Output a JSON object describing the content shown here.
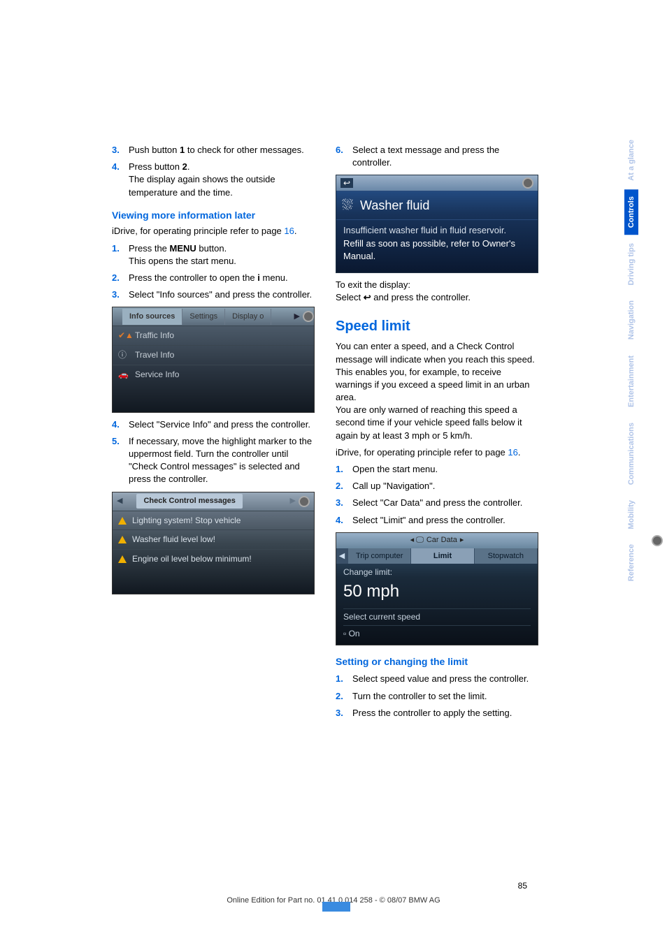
{
  "left": {
    "step3": "Push button ",
    "step3_bold": "1",
    "step3_tail": " to check for other messages.",
    "step4a": "Press button ",
    "step4_bold": "2",
    "step4_tail": ".",
    "step4b": "The display again shows the outside temperature and the time.",
    "sub1": "Viewing more information later",
    "idrive": "iDrive, for operating principle refer to page ",
    "idrive_pg": "16",
    "l1a": "Press the ",
    "l1b": "MENU",
    "l1c": " button.",
    "l1d": "This opens the start menu.",
    "l2a": "Press the controller to open the ",
    "l2b": " menu.",
    "l3": "Select \"Info sources\" and press the controller.",
    "ss1_tabs": [
      "Info sources",
      "Settings",
      "Display o"
    ],
    "ss1_rows": [
      "Traffic Info",
      "Travel Info",
      "Service Info"
    ],
    "l4": "Select \"Service Info\" and press the controller.",
    "l5": "If necessary, move the highlight marker to the uppermost field. Turn the controller until \"Check Control messages\" is selected and press the controller.",
    "ss2_title": "Check Control messages",
    "ss2_rows": [
      "Lighting system! Stop vehicle",
      "Washer fluid level low!",
      "Engine oil level below minimum!"
    ]
  },
  "right": {
    "r6": "Select a text message and press the controller.",
    "ss3_title": "Washer fluid",
    "ss3_b1": "Insufficient washer fluid in fluid reservoir.",
    "ss3_b2": "Refill as soon as possible, refer to Owner's Manual.",
    "exit1": "To exit the display:",
    "exit2a": "Select ",
    "exit2b": " and press the controller.",
    "section": "Speed limit",
    "p1": "You can enter a speed, and a Check Control message will indicate when you reach this speed. This enables you, for example, to receive warnings if you exceed a speed limit in an urban area.",
    "p2": "You are only warned of reaching this speed a second time if your vehicle speed falls below it again by at least 3 mph or 5 km/h.",
    "idrive": "iDrive, for operating principle refer to page ",
    "idrive_pg": "16",
    "s1": "Open the start menu.",
    "s2": "Call up \"Navigation\".",
    "s3": "Select \"Car Data\" and press the controller.",
    "s4": "Select \"Limit\" and press the controller.",
    "ss4_top": "Car Data",
    "ss4_tabs": [
      "Trip computer",
      "Limit",
      "Stopwatch"
    ],
    "ss4_lbl": "Change limit:",
    "ss4_mph": "50 mph",
    "ss4_sel": "Select current speed",
    "ss4_on": "On",
    "sub2": "Setting or changing the limit",
    "c1": "Select speed value and press the controller.",
    "c2": "Turn the controller to set the limit.",
    "c3": "Press the controller to apply the setting."
  },
  "sidebar": [
    "At a glance",
    "Controls",
    "Driving tips",
    "Navigation",
    "Entertainment",
    "Communications",
    "Mobility",
    "Reference"
  ],
  "sidebar_active": 1,
  "footer": "Online Edition for Part no. 01 41 0 014 258 - © 08/07 BMW AG",
  "page_num": "85"
}
